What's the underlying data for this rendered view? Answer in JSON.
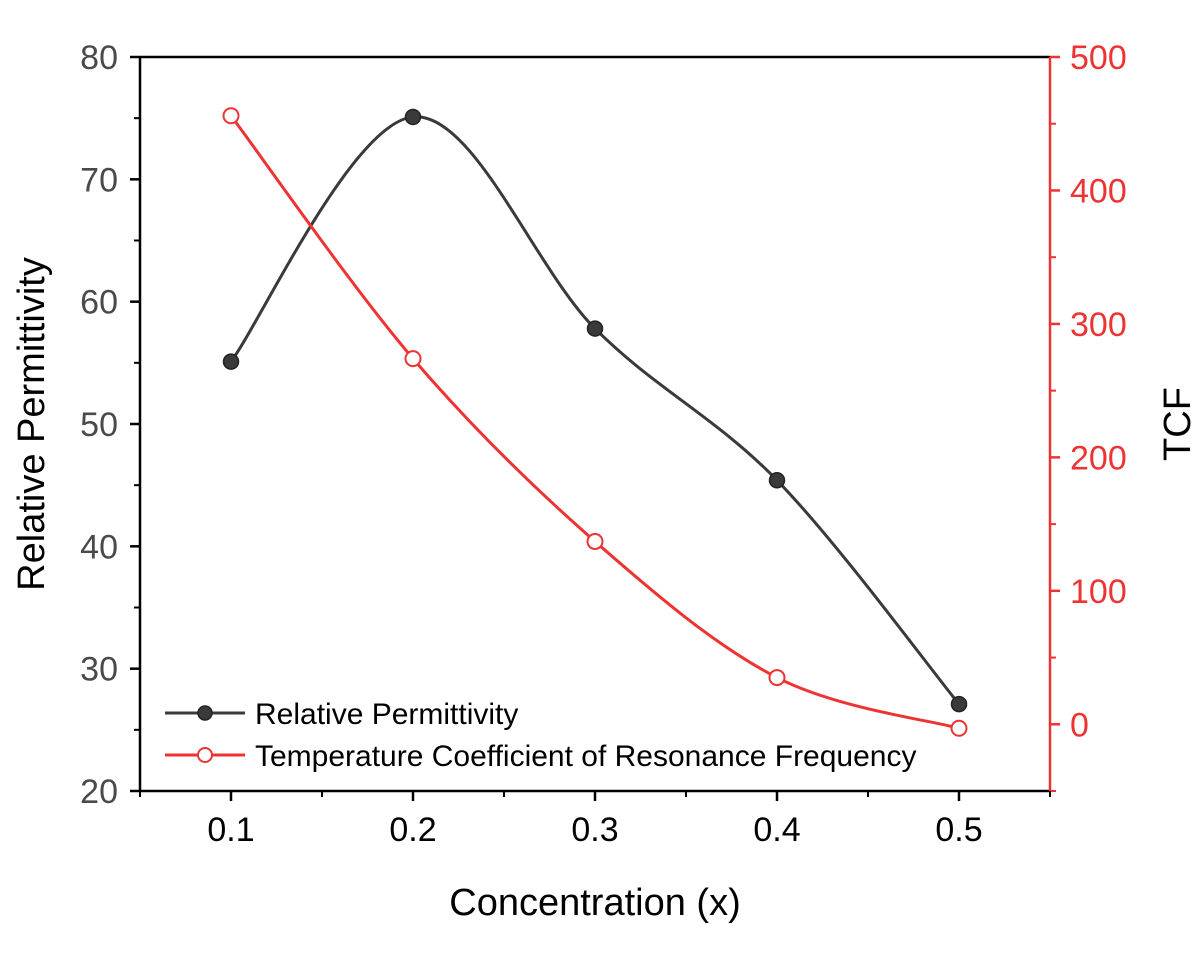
{
  "chart_data": {
    "type": "line",
    "xlabel": "Concentration (x)",
    "ylabel": "Relative Permittivity",
    "y2label": "TCF",
    "xlim": [
      0.05,
      0.55
    ],
    "ylim": [
      20,
      80
    ],
    "y2lim": [
      -50,
      500
    ],
    "x_ticks": [
      0.1,
      0.2,
      0.3,
      0.4,
      0.5
    ],
    "x_tick_labels": [
      "0.1",
      "0.2",
      "0.3",
      "0.4",
      "0.5"
    ],
    "y_ticks": [
      20,
      30,
      40,
      50,
      60,
      70,
      80
    ],
    "y_tick_labels": [
      "20",
      "30",
      "40",
      "50",
      "60",
      "70",
      "80"
    ],
    "y2_ticks": [
      0,
      100,
      200,
      300,
      400,
      500
    ],
    "y2_tick_labels": [
      "0",
      "100",
      "200",
      "300",
      "400",
      "500"
    ],
    "grid": false,
    "legend_position": "bottom-left",
    "series": [
      {
        "name": "Relative Permittivity",
        "axis": "left",
        "color": "#3a3a3a",
        "marker": "filled-circle",
        "x": [
          0.1,
          0.2,
          0.3,
          0.4,
          0.5
        ],
        "values": [
          55.1,
          75.1,
          57.8,
          45.4,
          27.1
        ]
      },
      {
        "name": "Temperature Coefficient of Resonance Frequency",
        "axis": "right",
        "color": "#ee3333",
        "marker": "open-circle",
        "x": [
          0.1,
          0.2,
          0.3,
          0.4,
          0.5
        ],
        "values": [
          456,
          274,
          137,
          35,
          -3
        ]
      }
    ]
  }
}
